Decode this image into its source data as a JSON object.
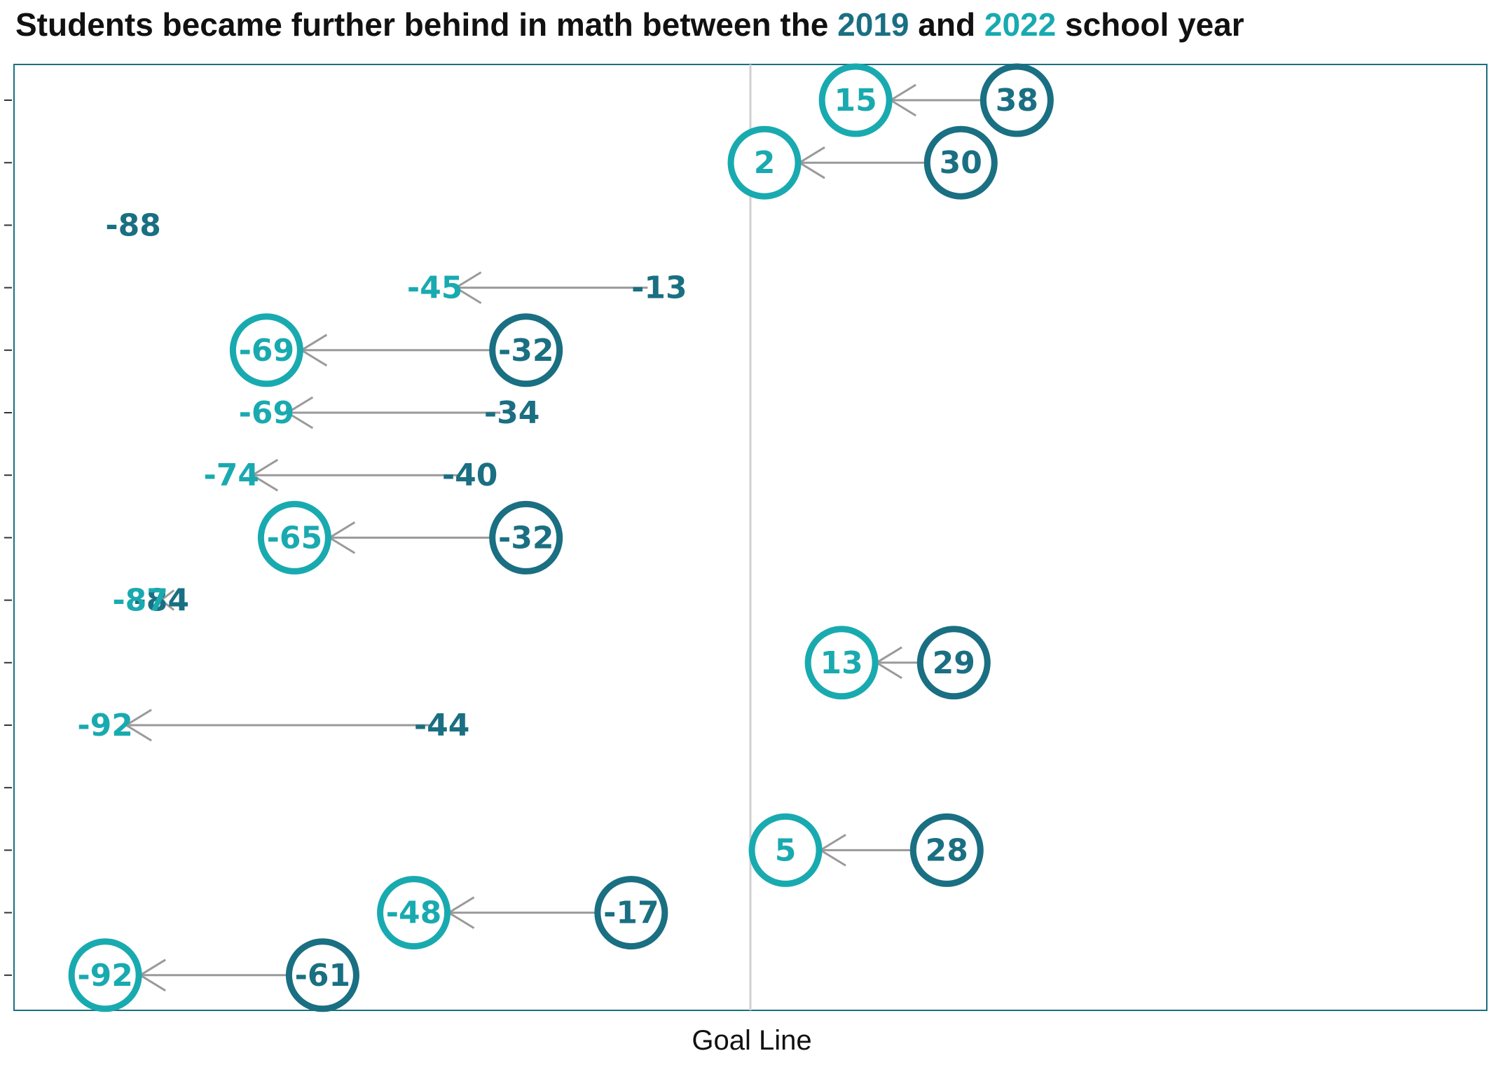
{
  "title": {
    "prefix": "Students became further behind in math between the ",
    "year1": "2019",
    "middle": " and ",
    "year2": "2022",
    "suffix": " school year"
  },
  "colors": {
    "y2019": "#1a6f82",
    "y2022": "#19aab0",
    "arrow": "#9a9a9a",
    "goal_line": "#d0d0d0",
    "frame": "#1a6f82"
  },
  "chart_data": {
    "type": "dumbbell-arrow",
    "title": "Students became further behind in math between the 2019 and 2022 school year",
    "series": [
      {
        "name": "2019",
        "values": [
          38,
          30,
          -88,
          -13,
          -32,
          -34,
          -40,
          -32,
          -84,
          29,
          -44,
          null,
          28,
          -17,
          -61
        ]
      },
      {
        "name": "2022",
        "values": [
          15,
          2,
          null,
          -45,
          -69,
          -69,
          -74,
          -65,
          -87,
          13,
          -92,
          null,
          5,
          -48,
          -92
        ]
      }
    ],
    "circled": [
      true,
      true,
      false,
      false,
      true,
      false,
      false,
      true,
      false,
      true,
      false,
      false,
      true,
      true,
      true
    ],
    "xlim": [
      -105,
      105
    ],
    "xlabel": "Goal Line",
    "reference_line_x": 0,
    "grid": false
  }
}
